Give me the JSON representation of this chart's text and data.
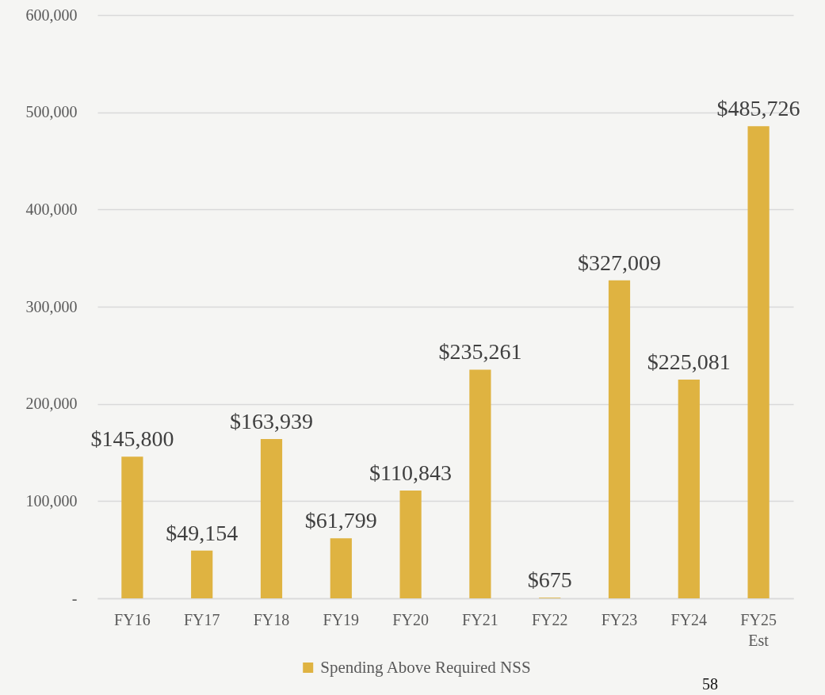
{
  "chart_data": {
    "type": "bar",
    "categories": [
      "FY16",
      "FY17",
      "FY18",
      "FY19",
      "FY20",
      "FY21",
      "FY22",
      "FY23",
      "FY24",
      "FY25 Est"
    ],
    "series": [
      {
        "name": "Spending Above Required NSS",
        "color": "#dfb341",
        "values": [
          145800,
          49154,
          163939,
          61799,
          110843,
          235261,
          675,
          327009,
          225081,
          485726
        ],
        "value_labels": [
          "$145,800",
          "$49,154",
          "$163,939",
          "$61,799",
          "$110,843",
          "$235,261",
          "$675",
          "$327,009",
          "$225,081",
          "$485,726"
        ]
      }
    ],
    "ylim": [
      0,
      600000
    ],
    "yticks": [
      {
        "value": 0,
        "label": "-"
      },
      {
        "value": 100000,
        "label": "100,000"
      },
      {
        "value": 200000,
        "label": "200,000"
      },
      {
        "value": 300000,
        "label": "300,000"
      },
      {
        "value": 400000,
        "label": "400,000"
      },
      {
        "value": 500000,
        "label": "500,000"
      },
      {
        "value": 600000,
        "label": "600,000"
      }
    ],
    "grid": "y",
    "legend": "bottom",
    "annotations": [
      "58"
    ]
  }
}
